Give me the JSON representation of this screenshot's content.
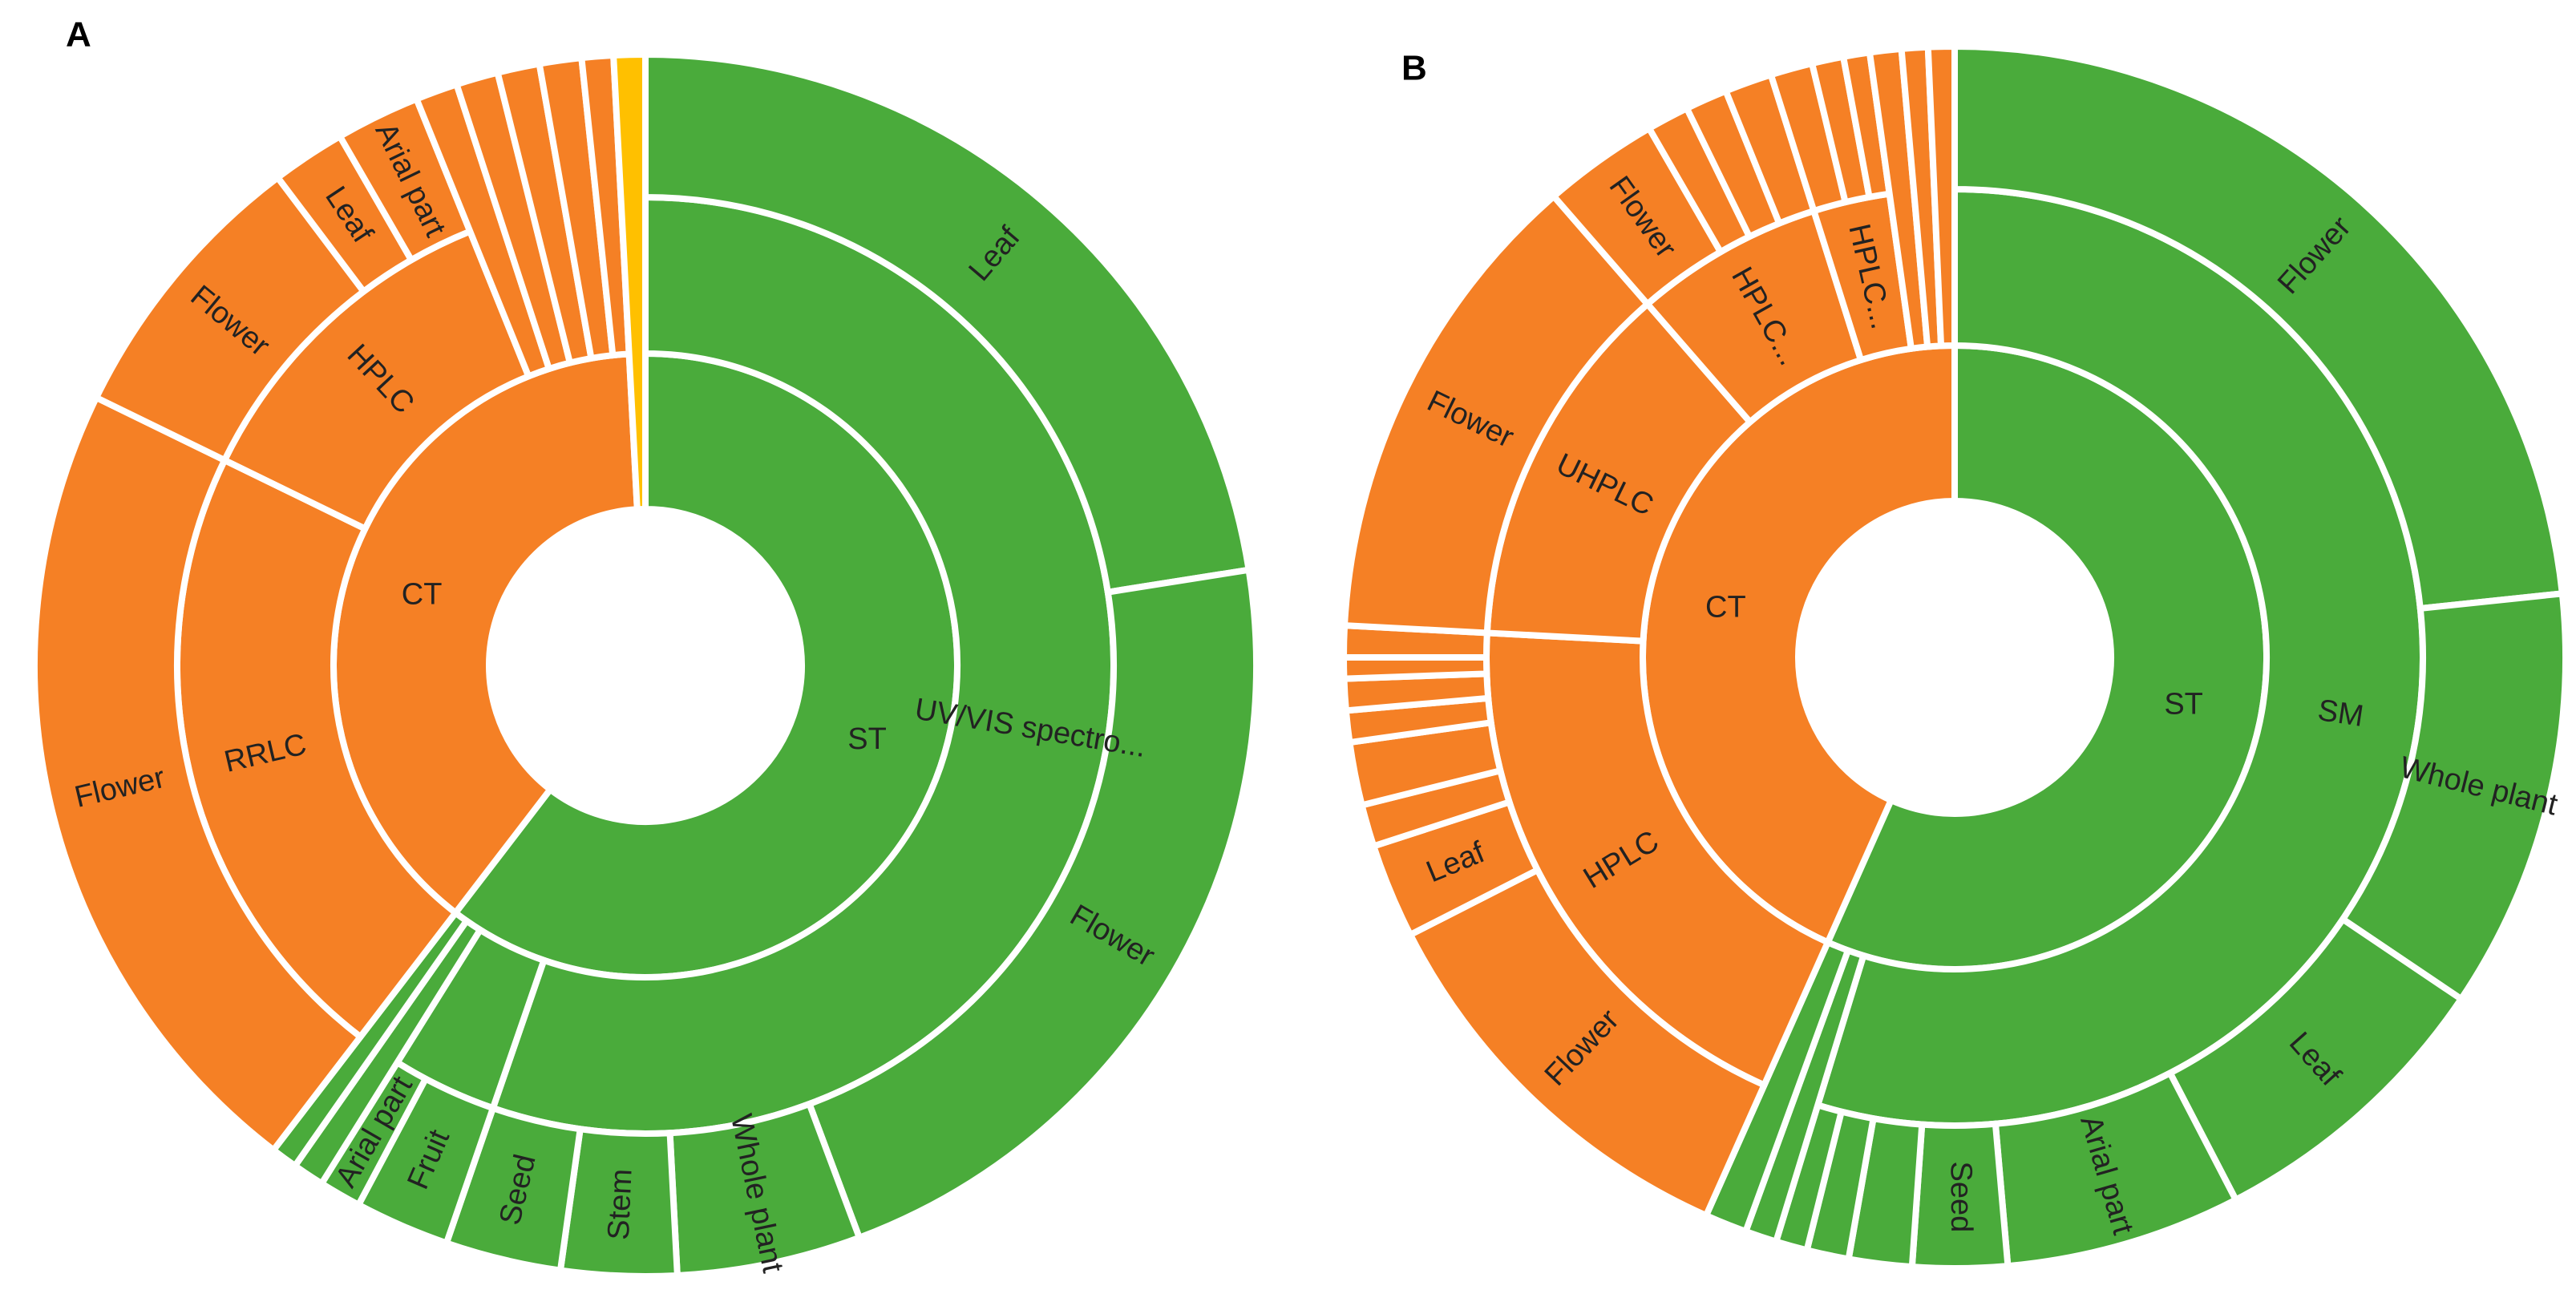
{
  "chart_data": [
    {
      "type": "sunburst",
      "title": "A",
      "nodes": [
        {
          "name": "ST",
          "color": "#4aab3b",
          "value": 217.5,
          "children": [
            {
              "name": "UV/VIS spectro...",
              "value": 199,
              "children": [
                {
                  "name": "Leaf",
                  "value": 81
                },
                {
                  "name": "Flower",
                  "value": 78.5
                },
                {
                  "name": "Whole plant",
                  "value": 17.5
                },
                {
                  "name": "Stem",
                  "value": 11
                },
                {
                  "name": "Seed",
                  "value": 11
                }
              ]
            },
            {
              "name": null,
              "value": 13,
              "children": [
                {
                  "name": "Fruit",
                  "value": 9
                },
                {
                  "name": "Arial part",
                  "value": 4
                }
              ]
            },
            {
              "name": null,
              "value": 3
            },
            {
              "name": null,
              "value": 2.5
            }
          ]
        },
        {
          "name": "CT",
          "color": "#f58025",
          "value": 139.5,
          "children": [
            {
              "name": "RRLC",
              "value": 78.5,
              "children": [
                {
                  "name": "Flower",
                  "value": 78.5
                }
              ]
            },
            {
              "name": "HPLC",
              "value": 42,
              "children": [
                {
                  "name": "Flower",
                  "value": 27
                },
                {
                  "name": "Leaf",
                  "value": 7
                },
                {
                  "name": "Arial part",
                  "value": 8
                }
              ]
            },
            {
              "name": null,
              "value": 4
            },
            {
              "name": null,
              "value": 4
            },
            {
              "name": null,
              "value": 4
            },
            {
              "name": null,
              "value": 4
            },
            {
              "name": null,
              "value": 3
            }
          ]
        },
        {
          "name": null,
          "color": "#ffc000",
          "value": 3
        }
      ]
    },
    {
      "type": "sunburst",
      "title": "B",
      "nodes": [
        {
          "name": "ST",
          "color": "#4aab3b",
          "value": 204,
          "children": [
            {
              "name": "SM",
              "value": 197,
              "children": [
                {
                  "name": "Flower",
                  "value": 84
                },
                {
                  "name": "Whole plant",
                  "value": 40
                },
                {
                  "name": "Leaf",
                  "value": 28.6
                },
                {
                  "name": "Arial part",
                  "value": 22.4
                },
                {
                  "name": "Seed",
                  "value": 9
                },
                {
                  "name": null,
                  "value": 6
                },
                {
                  "name": null,
                  "value": 4
                },
                {
                  "name": null,
                  "value": 3
                }
              ]
            },
            {
              "name": null,
              "value": 3
            },
            {
              "name": null,
              "value": 4
            }
          ]
        },
        {
          "name": "CT",
          "color": "#f58025",
          "value": 156,
          "children": [
            {
              "name": "HPLC",
              "value": 69,
              "children": [
                {
                  "name": "Flower",
                  "value": 39
                },
                {
                  "name": "Leaf",
                  "value": 9
                },
                {
                  "name": null,
                  "value": 4
                },
                {
                  "name": null,
                  "value": 6
                },
                {
                  "name": null,
                  "value": 3
                },
                {
                  "name": null,
                  "value": 3
                },
                {
                  "name": null,
                  "value": 2
                },
                {
                  "name": null,
                  "value": 3
                }
              ]
            },
            {
              "name": "UHPLC",
              "value": 46,
              "children": [
                {
                  "name": "Flower",
                  "value": 46
                }
              ]
            },
            {
              "name": "HPLC...",
              "value": 23.5,
              "children": [
                {
                  "name": "Flower",
                  "value": 11
                },
                {
                  "name": null,
                  "value": 4
                },
                {
                  "name": null,
                  "value": 4
                },
                {
                  "name": null,
                  "value": 4.5
                }
              ]
            },
            {
              "name": "HPLC...",
              "value": 9.5,
              "children": [
                {
                  "name": null,
                  "value": 4
                },
                {
                  "name": null,
                  "value": 3
                },
                {
                  "name": null,
                  "value": 2.5
                }
              ]
            },
            {
              "name": null,
              "value": 3
            },
            {
              "name": null,
              "value": 2.5
            },
            {
              "name": null,
              "value": 2.5
            }
          ]
        }
      ]
    }
  ]
}
